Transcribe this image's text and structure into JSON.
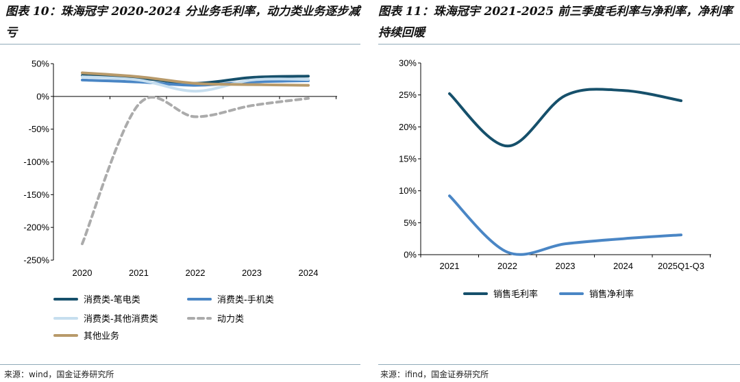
{
  "titles": {
    "left": "图表 10：珠海冠宇 2020-2024 分业务毛利率，动力类业务逐步减亏",
    "right": "图表 11：珠海冠宇 2021-2025 前三季度毛利率与净利率，净利率持续回暖"
  },
  "sources": {
    "left": "来源：wind，国金证券研究所",
    "right": "来源：ifind，国金证券研究所"
  },
  "colors": {
    "dark_teal": "#16506b",
    "mid_blue": "#4a86c5",
    "light_blue": "#c6deef",
    "gray": "#ababab",
    "gold": "#b89a6a",
    "rule": "#8fa9b8"
  },
  "chart_data": [
    {
      "type": "line",
      "title": "珠海冠宇 2020-2024 分业务毛利率",
      "categories": [
        "2020",
        "2021",
        "2022",
        "2023",
        "2024"
      ],
      "yticks": [
        "50%",
        "0%",
        "-50%",
        "-100%",
        "-150%",
        "-200%",
        "-250%"
      ],
      "ylim": [
        -250,
        50
      ],
      "unit": "%",
      "series": [
        {
          "name": "消费类-笔电类",
          "values": [
            32,
            28,
            20,
            29,
            31
          ],
          "color": "#16506b",
          "dash": false
        },
        {
          "name": "消费类-手机类",
          "values": [
            25,
            22,
            17,
            22,
            24
          ],
          "color": "#4a86c5",
          "dash": false
        },
        {
          "name": "消费类-其他消费类",
          "values": [
            30,
            25,
            8,
            25,
            26
          ],
          "color": "#c6deef",
          "dash": false
        },
        {
          "name": "动力类",
          "values": [
            -225,
            -12,
            -31,
            -14,
            -3
          ],
          "color": "#ababab",
          "dash": true
        },
        {
          "name": "其他业务",
          "values": [
            36,
            30,
            20,
            18,
            17
          ],
          "color": "#b89a6a",
          "dash": false
        }
      ]
    },
    {
      "type": "line",
      "title": "珠海冠宇 2021-2025 前三季度毛利率与净利率",
      "categories": [
        "2021",
        "2022",
        "2023",
        "2024",
        "2025Q1-Q3"
      ],
      "yticks": [
        "30%",
        "25%",
        "20%",
        "15%",
        "10%",
        "5%",
        "0%"
      ],
      "ylim": [
        0,
        30
      ],
      "unit": "%",
      "series": [
        {
          "name": "销售毛利率",
          "values": [
            25.2,
            17.0,
            24.9,
            25.7,
            24.1
          ],
          "color": "#16506b",
          "dash": false
        },
        {
          "name": "销售净利率",
          "values": [
            9.2,
            0.4,
            1.7,
            2.5,
            3.1
          ],
          "color": "#4a86c5",
          "dash": false
        }
      ]
    }
  ]
}
